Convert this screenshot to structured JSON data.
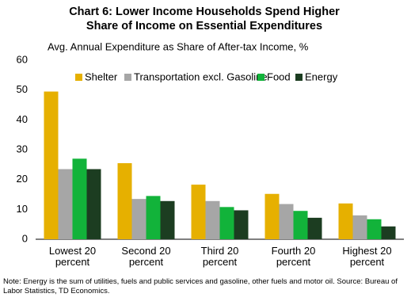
{
  "chart_data": {
    "type": "bar",
    "title": "Chart 6: Lower Income Households Spend Higher",
    "title_line2": "Share of Income on Essential Expenditures",
    "subtitle": "Avg. Annual Expenditure as Share of After-tax Income, %",
    "categories": [
      "Lowest 20 percent",
      "Second 20 percent",
      "Third 20 percent",
      "Fourth 20 percent",
      "Highest 20 percent"
    ],
    "series": [
      {
        "name": "Shelter",
        "color": "#e6b000",
        "values": [
          49.5,
          25.5,
          18.3,
          15.2,
          12
        ]
      },
      {
        "name": "Transportation excl. Gasoline",
        "color": "#a6a6a6",
        "values": [
          23.5,
          13.5,
          12.8,
          11.8,
          8
        ]
      },
      {
        "name": "Food",
        "color": "#12b33a",
        "values": [
          27,
          14.5,
          10.8,
          9.5,
          6.7
        ]
      },
      {
        "name": "Energy",
        "color": "#1c3d21",
        "values": [
          23.5,
          12.8,
          9.7,
          7.2,
          4.3
        ]
      }
    ],
    "ylim": [
      0,
      60
    ],
    "yticks": [
      0,
      10,
      20,
      30,
      40,
      50,
      60
    ],
    "grid": false,
    "legend": "top",
    "note": "Note: Energy is the sum of utilities, fuels and public services and gasoline, other fuels and motor oil. Source: Bureau of Labor Statistics, TD Economics."
  }
}
